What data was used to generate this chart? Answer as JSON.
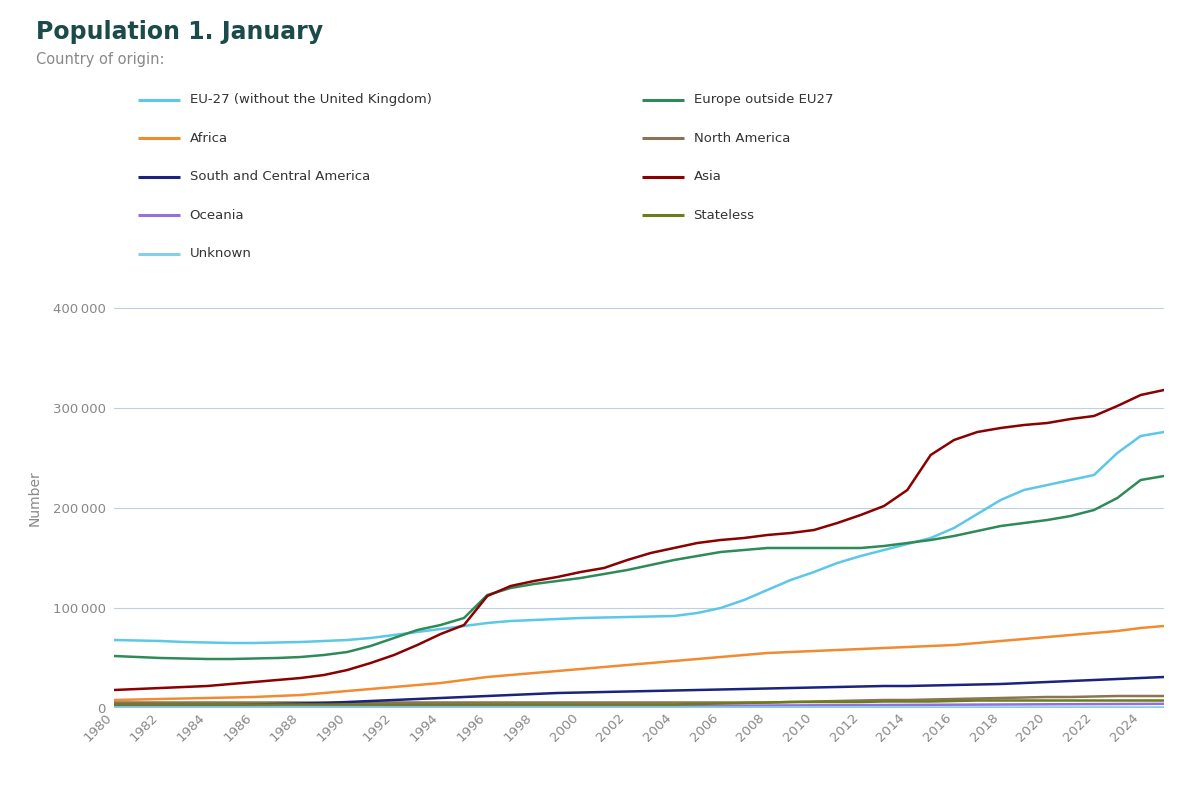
{
  "title": "Population 1. January",
  "subtitle": "Country of origin:",
  "title_color": "#1a4a4a",
  "subtitle_color": "#888888",
  "ylabel": "Number",
  "xlim": [
    1980,
    2025
  ],
  "ylim": [
    0,
    420000
  ],
  "yticks": [
    0,
    100000,
    200000,
    300000,
    400000
  ],
  "series": {
    "EU-27 (without the United Kingdom)": {
      "color": "#5bc8e8",
      "data": {
        "1980": 68000,
        "1981": 67500,
        "1982": 67000,
        "1983": 66000,
        "1984": 65500,
        "1985": 65000,
        "1986": 65000,
        "1987": 65500,
        "1988": 66000,
        "1989": 67000,
        "1990": 68000,
        "1991": 70000,
        "1992": 73000,
        "1993": 76000,
        "1994": 79000,
        "1995": 82000,
        "1996": 85000,
        "1997": 87000,
        "1998": 88000,
        "1999": 89000,
        "2000": 90000,
        "2001": 90500,
        "2002": 91000,
        "2003": 91500,
        "2004": 92000,
        "2005": 95000,
        "2006": 100000,
        "2007": 108000,
        "2008": 118000,
        "2009": 128000,
        "2010": 136000,
        "2011": 145000,
        "2012": 152000,
        "2013": 158000,
        "2014": 164000,
        "2015": 170000,
        "2016": 180000,
        "2017": 194000,
        "2018": 208000,
        "2019": 218000,
        "2020": 223000,
        "2021": 228000,
        "2022": 233000,
        "2023": 255000,
        "2024": 272000,
        "2025": 276000
      }
    },
    "Europe outside EU27": {
      "color": "#2e8b57",
      "data": {
        "1980": 52000,
        "1981": 51000,
        "1982": 50000,
        "1983": 49500,
        "1984": 49000,
        "1985": 49000,
        "1986": 49500,
        "1987": 50000,
        "1988": 51000,
        "1989": 53000,
        "1990": 56000,
        "1991": 62000,
        "1992": 70000,
        "1993": 78000,
        "1994": 83000,
        "1995": 90000,
        "1996": 113000,
        "1997": 120000,
        "1998": 124000,
        "1999": 127000,
        "2000": 130000,
        "2001": 134000,
        "2002": 138000,
        "2003": 143000,
        "2004": 148000,
        "2005": 152000,
        "2006": 156000,
        "2007": 158000,
        "2008": 160000,
        "2009": 160000,
        "2010": 160000,
        "2011": 160000,
        "2012": 160000,
        "2013": 162000,
        "2014": 165000,
        "2015": 168000,
        "2016": 172000,
        "2017": 177000,
        "2018": 182000,
        "2019": 185000,
        "2020": 188000,
        "2021": 192000,
        "2022": 198000,
        "2023": 210000,
        "2024": 228000,
        "2025": 232000
      }
    },
    "Africa": {
      "color": "#f28a30",
      "data": {
        "1980": 8000,
        "1981": 8500,
        "1982": 9000,
        "1983": 9500,
        "1984": 10000,
        "1985": 10500,
        "1986": 11000,
        "1987": 12000,
        "1988": 13000,
        "1989": 15000,
        "1990": 17000,
        "1991": 19000,
        "1992": 21000,
        "1993": 23000,
        "1994": 25000,
        "1995": 28000,
        "1996": 31000,
        "1997": 33000,
        "1998": 35000,
        "1999": 37000,
        "2000": 39000,
        "2001": 41000,
        "2002": 43000,
        "2003": 45000,
        "2004": 47000,
        "2005": 49000,
        "2006": 51000,
        "2007": 53000,
        "2008": 55000,
        "2009": 56000,
        "2010": 57000,
        "2011": 58000,
        "2012": 59000,
        "2013": 60000,
        "2014": 61000,
        "2015": 62000,
        "2016": 63000,
        "2017": 65000,
        "2018": 67000,
        "2019": 69000,
        "2020": 71000,
        "2021": 73000,
        "2022": 75000,
        "2023": 77000,
        "2024": 80000,
        "2025": 82000
      }
    },
    "North America": {
      "color": "#8b7355",
      "data": {
        "1980": 5500,
        "1981": 5500,
        "1982": 5500,
        "1983": 5500,
        "1984": 5500,
        "1985": 5500,
        "1986": 5500,
        "1987": 5500,
        "1988": 5500,
        "1989": 5500,
        "1990": 5500,
        "1991": 5500,
        "1992": 5500,
        "1993": 5500,
        "1994": 5500,
        "1995": 5500,
        "1996": 5500,
        "1997": 5500,
        "1998": 5500,
        "1999": 5500,
        "2000": 5500,
        "2001": 5500,
        "2002": 5500,
        "2003": 5500,
        "2004": 5500,
        "2005": 5500,
        "2006": 5500,
        "2007": 5500,
        "2008": 5500,
        "2009": 6000,
        "2010": 6500,
        "2011": 7000,
        "2012": 7500,
        "2013": 8000,
        "2014": 8000,
        "2015": 8500,
        "2016": 9000,
        "2017": 9500,
        "2018": 10000,
        "2019": 10500,
        "2020": 11000,
        "2021": 11000,
        "2022": 11500,
        "2023": 12000,
        "2024": 12000,
        "2025": 12000
      }
    },
    "South and Central America": {
      "color": "#1a237e",
      "data": {
        "1980": 3000,
        "1981": 3000,
        "1982": 3000,
        "1983": 3000,
        "1984": 3000,
        "1985": 3000,
        "1986": 3500,
        "1987": 4000,
        "1988": 4500,
        "1989": 5000,
        "1990": 6000,
        "1991": 7000,
        "1992": 8000,
        "1993": 9000,
        "1994": 10000,
        "1995": 11000,
        "1996": 12000,
        "1997": 13000,
        "1998": 14000,
        "1999": 15000,
        "2000": 15500,
        "2001": 16000,
        "2002": 16500,
        "2003": 17000,
        "2004": 17500,
        "2005": 18000,
        "2006": 18500,
        "2007": 19000,
        "2008": 19500,
        "2009": 20000,
        "2010": 20500,
        "2011": 21000,
        "2012": 21500,
        "2013": 22000,
        "2014": 22000,
        "2015": 22500,
        "2016": 23000,
        "2017": 23500,
        "2018": 24000,
        "2019": 25000,
        "2020": 26000,
        "2021": 27000,
        "2022": 28000,
        "2023": 29000,
        "2024": 30000,
        "2025": 31000
      }
    },
    "Asia": {
      "color": "#8b0000",
      "data": {
        "1980": 18000,
        "1981": 19000,
        "1982": 20000,
        "1983": 21000,
        "1984": 22000,
        "1985": 24000,
        "1986": 26000,
        "1987": 28000,
        "1988": 30000,
        "1989": 33000,
        "1990": 38000,
        "1991": 45000,
        "1992": 53000,
        "1993": 63000,
        "1994": 74000,
        "1995": 83000,
        "1996": 112000,
        "1997": 122000,
        "1998": 127000,
        "1999": 131000,
        "2000": 136000,
        "2001": 140000,
        "2002": 148000,
        "2003": 155000,
        "2004": 160000,
        "2005": 165000,
        "2006": 168000,
        "2007": 170000,
        "2008": 173000,
        "2009": 175000,
        "2010": 178000,
        "2011": 185000,
        "2012": 193000,
        "2013": 202000,
        "2014": 218000,
        "2015": 253000,
        "2016": 268000,
        "2017": 276000,
        "2018": 280000,
        "2019": 283000,
        "2020": 285000,
        "2021": 289000,
        "2022": 292000,
        "2023": 302000,
        "2024": 313000,
        "2025": 318000
      }
    },
    "Oceania": {
      "color": "#9370db",
      "data": {
        "1980": 1500,
        "1981": 1500,
        "1982": 1500,
        "1983": 1500,
        "1984": 1500,
        "1985": 1500,
        "1986": 1500,
        "1987": 1500,
        "1988": 1500,
        "1989": 1500,
        "1990": 1500,
        "1991": 1600,
        "1992": 1700,
        "1993": 1800,
        "1994": 1900,
        "1995": 2000,
        "1996": 2000,
        "1997": 2000,
        "1998": 2000,
        "1999": 2000,
        "2000": 2000,
        "2001": 2000,
        "2002": 2000,
        "2003": 2100,
        "2004": 2100,
        "2005": 2200,
        "2006": 2300,
        "2007": 2400,
        "2008": 2500,
        "2009": 2600,
        "2010": 2700,
        "2011": 2800,
        "2012": 2900,
        "2013": 3000,
        "2014": 3100,
        "2015": 3200,
        "2016": 3300,
        "2017": 3400,
        "2018": 3500,
        "2019": 3600,
        "2020": 3700,
        "2021": 3800,
        "2022": 3900,
        "2023": 4000,
        "2024": 4100,
        "2025": 4200
      }
    },
    "Stateless": {
      "color": "#6b7c1a",
      "data": {
        "1980": 3500,
        "1981": 3500,
        "1982": 3500,
        "1983": 3500,
        "1984": 3500,
        "1985": 3500,
        "1986": 3500,
        "1987": 3500,
        "1988": 3500,
        "1989": 3500,
        "1990": 3500,
        "1991": 3500,
        "1992": 3500,
        "1993": 3500,
        "1994": 3500,
        "1995": 3500,
        "1996": 3500,
        "1997": 3500,
        "1998": 3500,
        "1999": 3500,
        "2000": 3500,
        "2001": 3500,
        "2002": 3500,
        "2003": 3500,
        "2004": 3500,
        "2005": 4000,
        "2006": 4500,
        "2007": 5000,
        "2008": 5500,
        "2009": 6000,
        "2010": 6000,
        "2011": 6000,
        "2012": 6000,
        "2013": 6500,
        "2014": 6500,
        "2015": 6500,
        "2016": 7000,
        "2017": 7500,
        "2018": 7500,
        "2019": 7500,
        "2020": 7500,
        "2021": 7500,
        "2022": 7500,
        "2023": 7500,
        "2024": 7500,
        "2025": 7500
      }
    },
    "Unknown": {
      "color": "#87ceeb",
      "data": {
        "1980": 1500,
        "1981": 1500,
        "1982": 1500,
        "1983": 1500,
        "1984": 1500,
        "1985": 1500,
        "1986": 1500,
        "1987": 1500,
        "1988": 1500,
        "1989": 1500,
        "1990": 1500,
        "1991": 1500,
        "1992": 1500,
        "1993": 1500,
        "1994": 1500,
        "1995": 1500,
        "1996": 1500,
        "1997": 1500,
        "1998": 1500,
        "1999": 1500,
        "2000": 1500,
        "2001": 1500,
        "2002": 1500,
        "2003": 1500,
        "2004": 1500,
        "2005": 1500,
        "2006": 1500,
        "2007": 1500,
        "2008": 1500,
        "2009": 1500,
        "2010": 1500,
        "2011": 1500,
        "2012": 1500,
        "2013": 1500,
        "2014": 1500,
        "2015": 1500,
        "2016": 1500,
        "2017": 1500,
        "2018": 1500,
        "2019": 1500,
        "2020": 1500,
        "2021": 1500,
        "2022": 1500,
        "2023": 1500,
        "2024": 1500,
        "2025": 1500
      }
    }
  },
  "legend_order_col1": [
    "EU-27 (without the United Kingdom)",
    "Africa",
    "South and Central America",
    "Oceania",
    "Unknown"
  ],
  "legend_order_col2": [
    "Europe outside EU27",
    "North America",
    "Asia",
    "Stateless"
  ],
  "background_color": "#ffffff",
  "grid_color": "#c0d0e0",
  "tick_color": "#888888"
}
